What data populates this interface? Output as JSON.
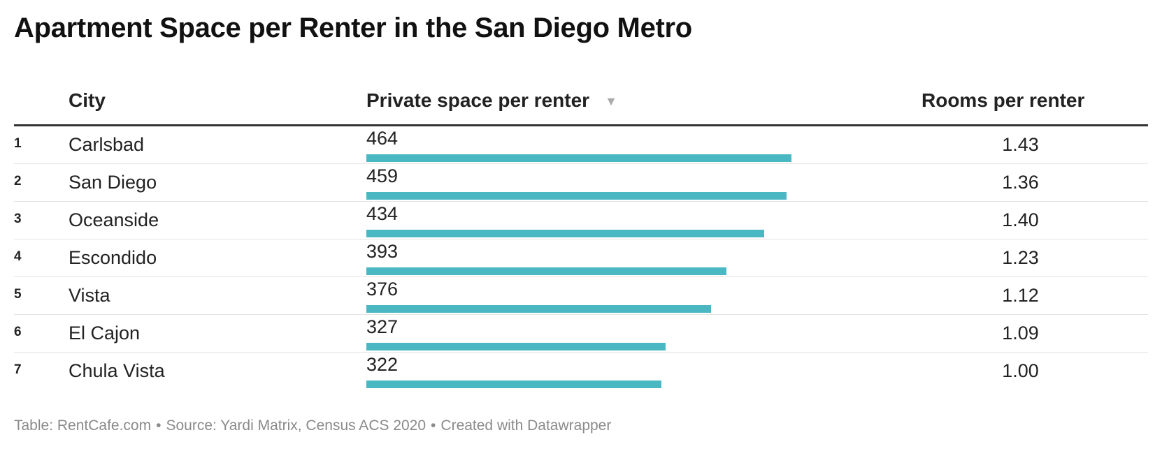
{
  "title": "Apartment Space per Renter in the San Diego Metro",
  "columns": {
    "city": "City",
    "space": "Private space per renter",
    "rooms": "Rooms per renter",
    "sort_indicator": "▼"
  },
  "colors": {
    "bar": "#4ab8c3"
  },
  "footer": {
    "table": "Table: RentCafe.com",
    "source": "Source: Yardi Matrix, Census ACS 2020",
    "created": "Created with Datawrapper",
    "separator": "•"
  },
  "chart_data": {
    "type": "table",
    "title": "Apartment Space per Renter in the San Diego Metro",
    "columns": [
      "",
      "City",
      "Private space per renter",
      "Rooms per renter"
    ],
    "sorted_by": "Private space per renter",
    "bar_max": 464,
    "rows": [
      {
        "rank": "1",
        "city": "Carlsbad",
        "space": 464,
        "rooms": "1.43"
      },
      {
        "rank": "2",
        "city": "San Diego",
        "space": 459,
        "rooms": "1.36"
      },
      {
        "rank": "3",
        "city": "Oceanside",
        "space": 434,
        "rooms": "1.40"
      },
      {
        "rank": "4",
        "city": "Escondido",
        "space": 393,
        "rooms": "1.23"
      },
      {
        "rank": "5",
        "city": "Vista",
        "space": 376,
        "rooms": "1.12"
      },
      {
        "rank": "6",
        "city": "El Cajon",
        "space": 327,
        "rooms": "1.09"
      },
      {
        "rank": "7",
        "city": "Chula Vista",
        "space": 322,
        "rooms": "1.00"
      }
    ]
  }
}
